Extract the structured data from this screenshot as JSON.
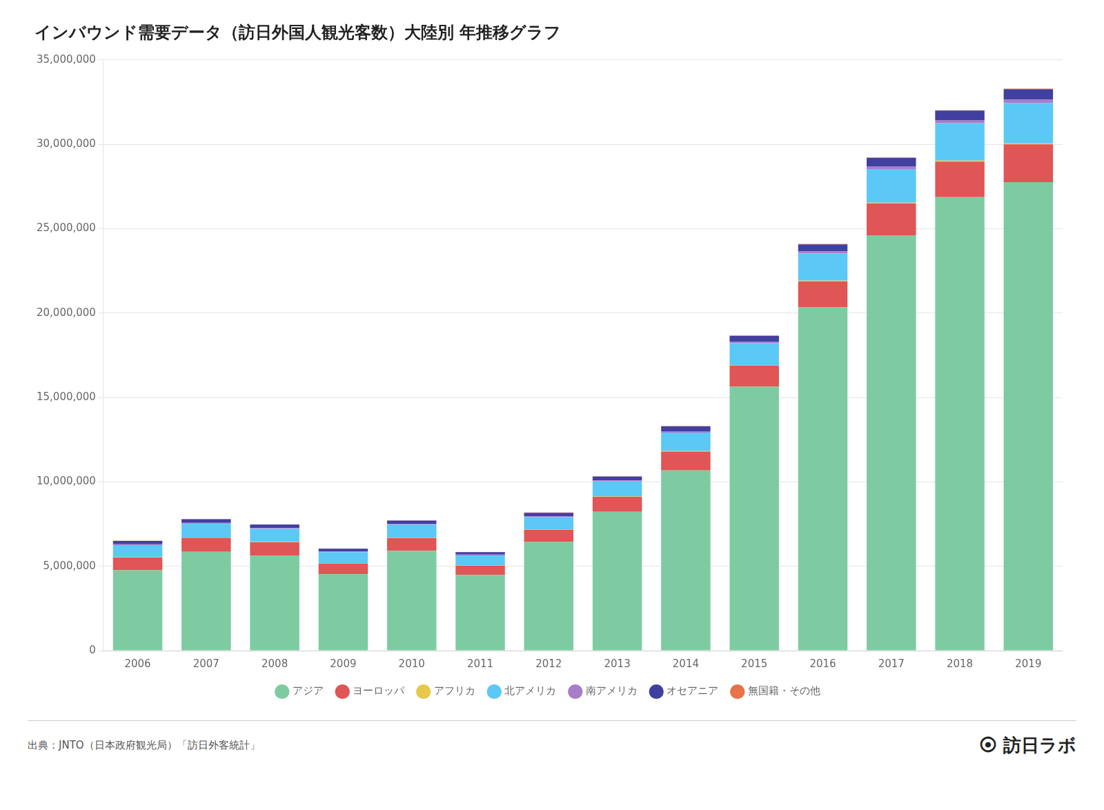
{
  "chart_data": {
    "type": "bar",
    "stacked": true,
    "title": "インバウンド需要データ（訪日外国人観光客数）大陸別 年推移グラフ",
    "categories": [
      "2006",
      "2007",
      "2008",
      "2009",
      "2010",
      "2011",
      "2012",
      "2013",
      "2014",
      "2015",
      "2016",
      "2017",
      "2018",
      "2019"
    ],
    "series": [
      {
        "name": "アジア",
        "color": "#7ecba1",
        "values": [
          4757609,
          5856588,
          5639883,
          4524118,
          5913906,
          4491173,
          6436601,
          8225895,
          10681800,
          15635000,
          20340000,
          24610000,
          26870000,
          27760000
        ]
      },
      {
        "name": "ヨーロッパ",
        "color": "#e05555",
        "values": [
          761917,
          825876,
          776613,
          633568,
          763427,
          549378,
          726536,
          886471,
          1116000,
          1254000,
          1534000,
          1880000,
          2105000,
          2239000
        ]
      },
      {
        "name": "アフリカ",
        "color": "#e8c84a",
        "values": [
          19528,
          22094,
          22218,
          17705,
          20937,
          15497,
          18877,
          22740,
          27200,
          32500,
          42000,
          52000,
          56000,
          58000
        ]
      },
      {
        "name": "北アメリカ",
        "color": "#5bc8f5",
        "values": [
          717311,
          808414,
          773192,
          657561,
          764394,
          588178,
          737531,
          885635,
          1095000,
          1291000,
          1610000,
          1993000,
          2225000,
          2391000
        ]
      },
      {
        "name": "南アメリカ",
        "color": "#a87dc8",
        "values": [
          51699,
          56892,
          54399,
          46261,
          54497,
          44027,
          55499,
          68571,
          84400,
          103700,
          131000,
          160000,
          177000,
          192000
        ]
      },
      {
        "name": "オセアニア",
        "color": "#4040a0",
        "values": [
          189964,
          212983,
          200979,
          163619,
          185630,
          149055,
          188973,
          225981,
          280000,
          332000,
          414000,
          499000,
          564000,
          623000
        ]
      },
      {
        "name": "無国籍・その他",
        "color": "#e8724a",
        "values": [
          12982,
          10441,
          11716,
          10168,
          11399,
          8672,
          17083,
          20708,
          25600,
          19800,
          29000,
          28000,
          23000,
          37000
        ]
      }
    ],
    "ylim": [
      0,
      35000000
    ],
    "yticks": [
      0,
      {
        "value": 5000000,
        "label": "5,000,000"
      },
      {
        "value": 10000000,
        "label": "10,000,000"
      },
      {
        "value": 15000000,
        "label": "15,000,000"
      },
      {
        "value": 20000000,
        "label": "20,000,000"
      },
      {
        "value": 25000000,
        "label": "25,000,000"
      },
      {
        "value": 30000000,
        "label": "30,000,000"
      },
      {
        "value": 35000000,
        "label": "35,000,000"
      }
    ],
    "grid": true,
    "legend": "bottom",
    "annotations": [
      "出典：JNTO（日本政府観光局）「訪日外客統計」",
      "⦿ 訪日ラボ"
    ]
  }
}
